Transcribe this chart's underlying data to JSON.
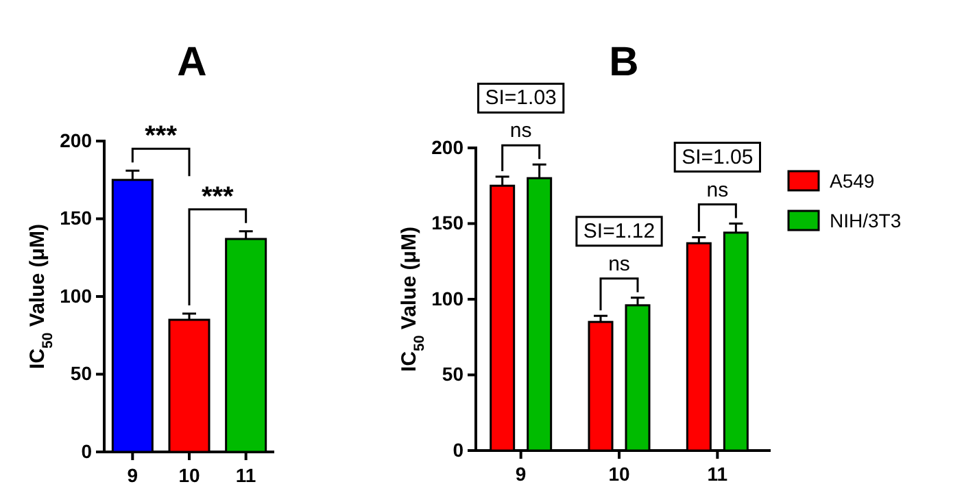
{
  "chart_data": [
    {
      "type": "bar",
      "title": "A",
      "ylabel": "IC$_{50}$ Value (μM)",
      "categories": [
        "9",
        "10",
        "11"
      ],
      "values": [
        175,
        85,
        137
      ],
      "colors": [
        "#0000ff",
        "#ff0000",
        "#00bb00"
      ],
      "errors": [
        6,
        4,
        5
      ],
      "ylim": [
        0,
        200
      ],
      "yticks": [
        0,
        50,
        100,
        150,
        200
      ],
      "grid": false,
      "legend": false,
      "annotations": [
        "***",
        "***"
      ]
    },
    {
      "type": "bar",
      "title": "B",
      "ylabel": "IC$_{50}$ Value (μM)",
      "categories": [
        "9",
        "10",
        "11"
      ],
      "series": [
        {
          "name": "A549",
          "color": "#ff0000",
          "values": [
            175,
            85,
            137
          ],
          "errors": [
            6,
            4,
            4
          ]
        },
        {
          "name": "NIH/3T3",
          "color": "#00bb00",
          "values": [
            180,
            96,
            144
          ],
          "errors": [
            9,
            5,
            6
          ]
        }
      ],
      "ylim": [
        0,
        200
      ],
      "yticks": [
        0,
        50,
        100,
        150,
        200
      ],
      "grid": false,
      "legend": "right",
      "annotations": [
        "SI=1.03",
        "ns",
        "SI=1.12",
        "ns",
        "SI=1.05",
        "ns"
      ]
    }
  ]
}
